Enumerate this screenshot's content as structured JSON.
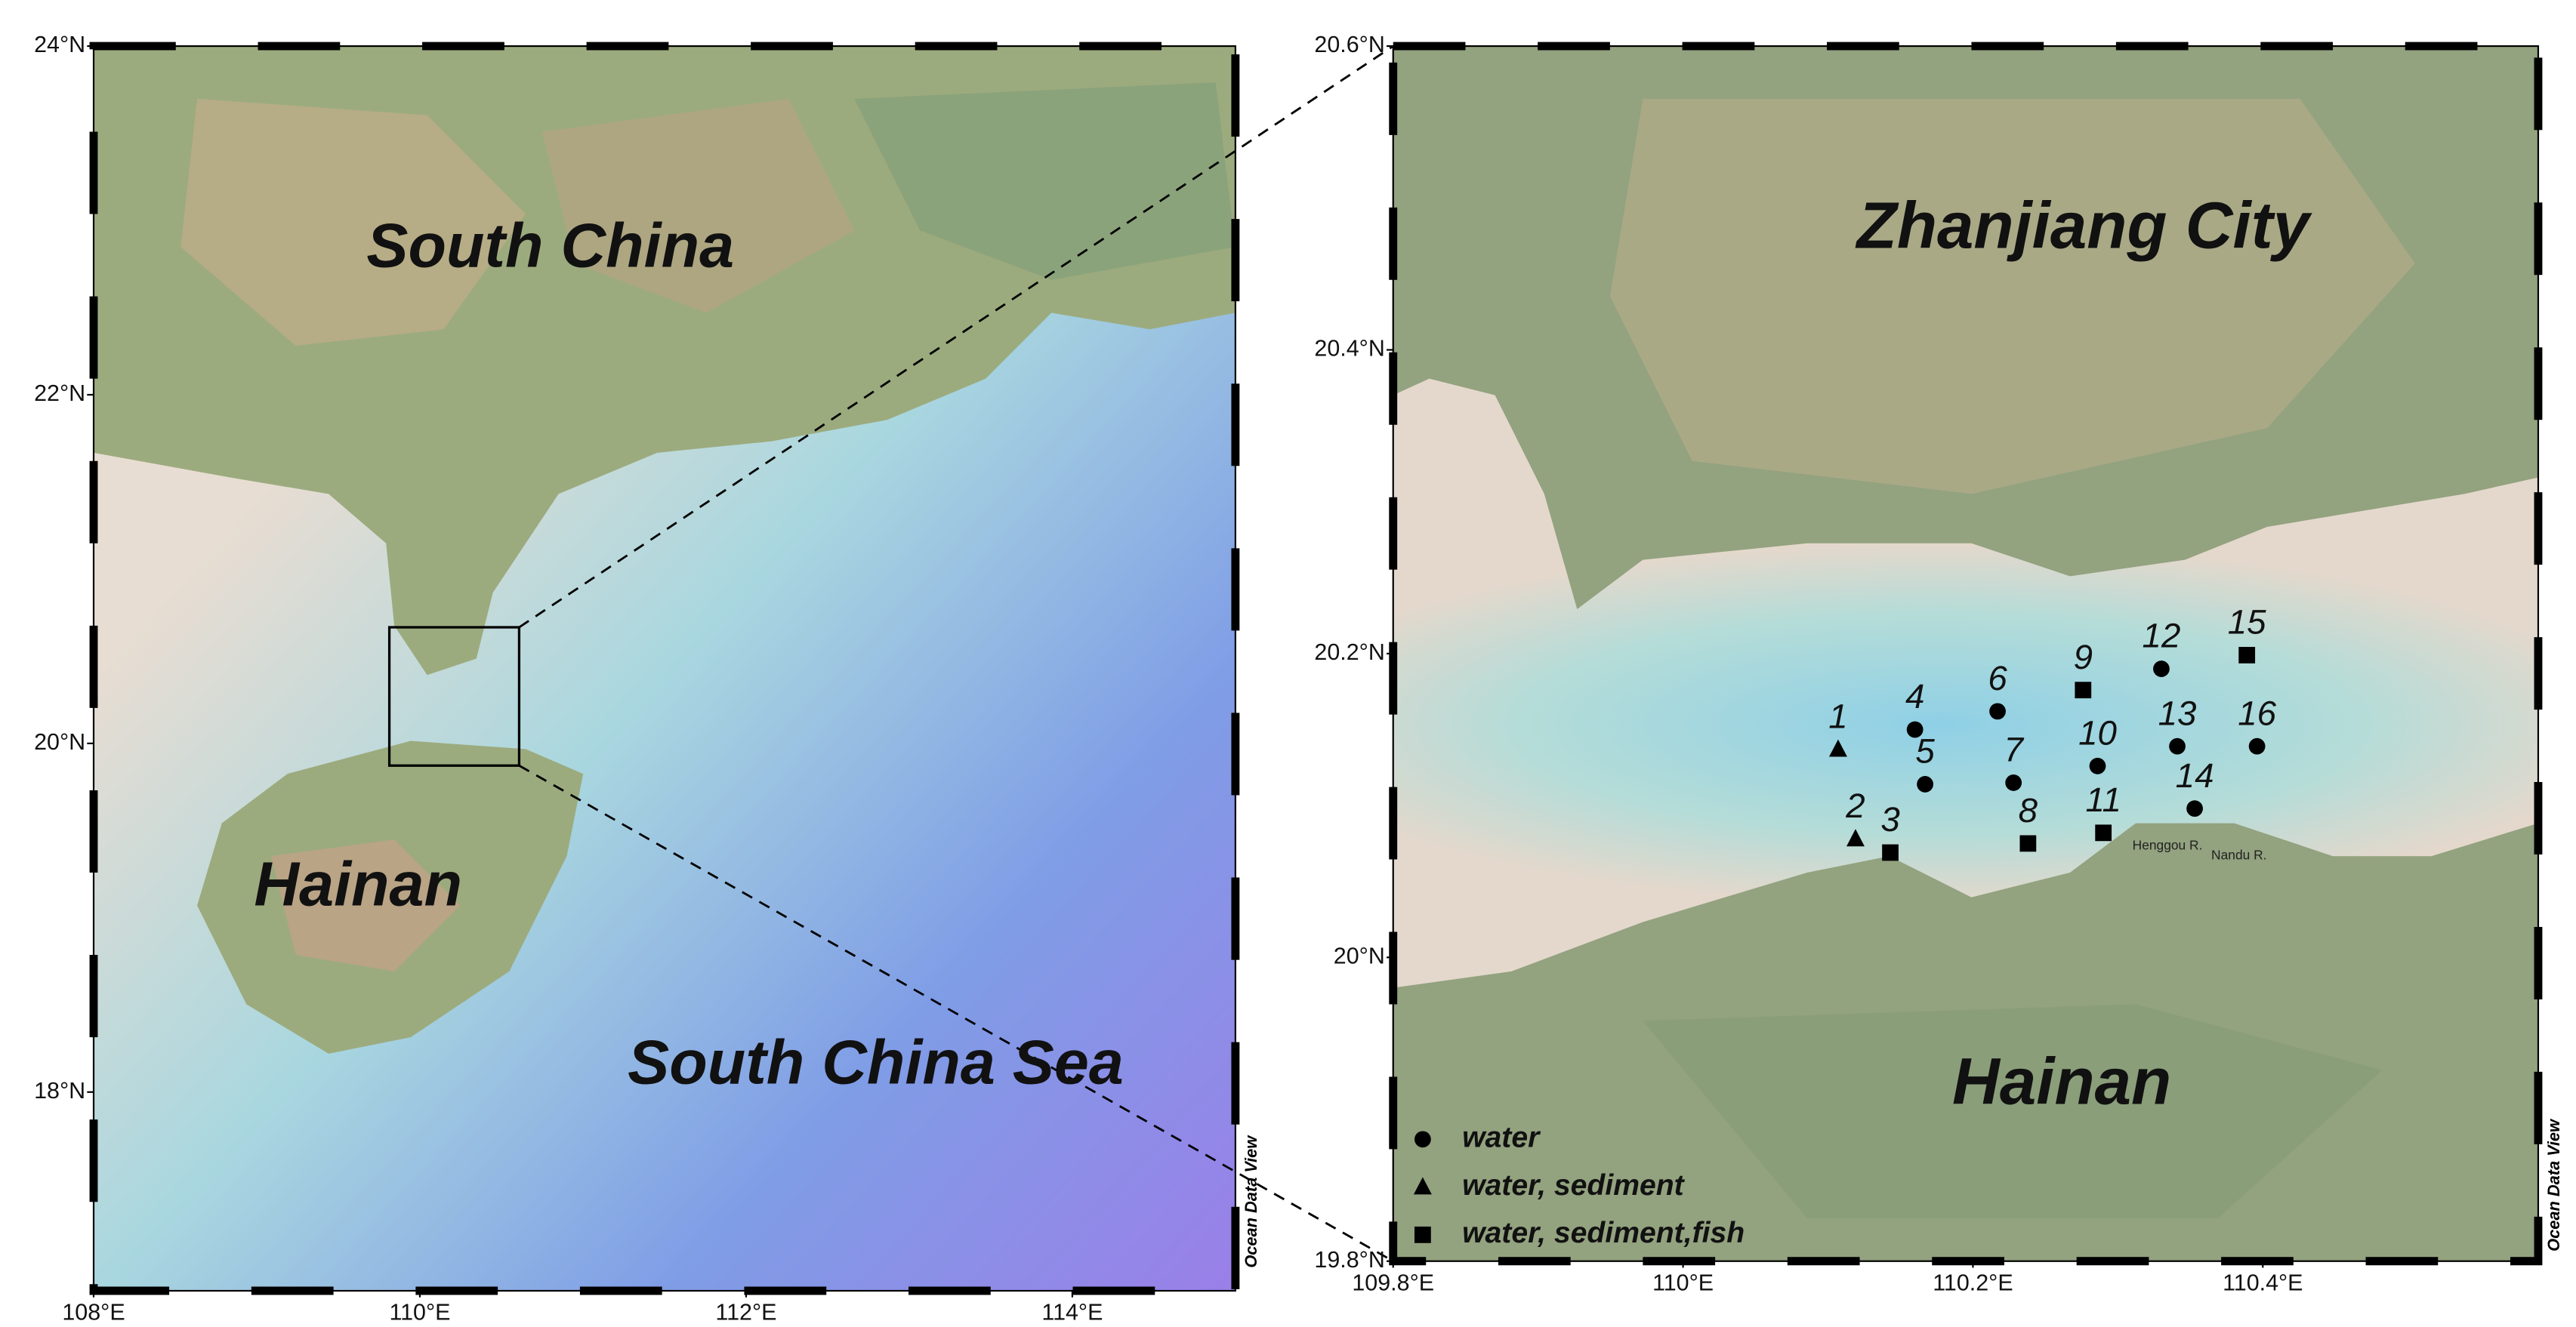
{
  "left_map": {
    "lon_range": [
      108,
      115
    ],
    "lat_range": [
      16.86,
      24
    ],
    "lat_ticks": [
      {
        "value": 24,
        "label": "24°N"
      },
      {
        "value": 22,
        "label": "22°N"
      },
      {
        "value": 20,
        "label": "20°N"
      },
      {
        "value": 18,
        "label": "18°N"
      }
    ],
    "lon_ticks": [
      {
        "value": 108,
        "label": "108°E"
      },
      {
        "value": 110,
        "label": "110°E"
      },
      {
        "value": 112,
        "label": "112°E"
      },
      {
        "value": 114,
        "label": "114°E"
      }
    ],
    "labels": [
      "South China",
      "Hainan",
      "South China Sea"
    ],
    "credit": "Ocean Data View"
  },
  "right_map": {
    "lon_range": [
      109.8,
      110.59
    ],
    "lat_range": [
      19.8,
      20.6
    ],
    "lat_ticks": [
      {
        "value": 20.6,
        "label": "20.6°N"
      },
      {
        "value": 20.4,
        "label": "20.4°N"
      },
      {
        "value": 20.2,
        "label": "20.2°N"
      },
      {
        "value": 20,
        "label": "20°N"
      },
      {
        "value": 19.8,
        "label": "19.8°N"
      }
    ],
    "lon_ticks": [
      {
        "value": 109.8,
        "label": "109.8°E"
      },
      {
        "value": 110,
        "label": "110°E"
      },
      {
        "value": 110.2,
        "label": "110.2°E"
      },
      {
        "value": 110.4,
        "label": "110.4°E"
      }
    ],
    "labels": [
      "Zhanjiang City",
      "Hainan"
    ],
    "rivers": [
      "Henggou R.",
      "Nandu R."
    ],
    "credit": "Ocean Data View",
    "legend": [
      {
        "label": "water",
        "symbol": "circle"
      },
      {
        "label": "water, sediment",
        "symbol": "triangle"
      },
      {
        "label": "water, sediment,fish",
        "symbol": "square"
      }
    ],
    "stations": [
      {
        "label": "1",
        "lon": 110.107,
        "lat": 20.137,
        "symbol": "triangle"
      },
      {
        "label": "2",
        "lon": 110.119,
        "lat": 20.078,
        "symbol": "triangle"
      },
      {
        "label": "3",
        "lon": 110.143,
        "lat": 20.069,
        "symbol": "square"
      },
      {
        "label": "4",
        "lon": 110.16,
        "lat": 20.15,
        "symbol": "circle"
      },
      {
        "label": "5",
        "lon": 110.167,
        "lat": 20.114,
        "symbol": "circle"
      },
      {
        "label": "6",
        "lon": 110.217,
        "lat": 20.162,
        "symbol": "circle"
      },
      {
        "label": "7",
        "lon": 110.228,
        "lat": 20.115,
        "symbol": "circle"
      },
      {
        "label": "8",
        "lon": 110.238,
        "lat": 20.075,
        "symbol": "square"
      },
      {
        "label": "9",
        "lon": 110.276,
        "lat": 20.176,
        "symbol": "square"
      },
      {
        "label": "10",
        "lon": 110.286,
        "lat": 20.126,
        "symbol": "circle"
      },
      {
        "label": "11",
        "lon": 110.29,
        "lat": 20.082,
        "symbol": "square"
      },
      {
        "label": "12",
        "lon": 110.33,
        "lat": 20.19,
        "symbol": "circle"
      },
      {
        "label": "13",
        "lon": 110.341,
        "lat": 20.139,
        "symbol": "circle"
      },
      {
        "label": "14",
        "lon": 110.353,
        "lat": 20.098,
        "symbol": "circle"
      },
      {
        "label": "15",
        "lon": 110.389,
        "lat": 20.199,
        "symbol": "square"
      },
      {
        "label": "16",
        "lon": 110.396,
        "lat": 20.139,
        "symbol": "circle"
      }
    ]
  }
}
